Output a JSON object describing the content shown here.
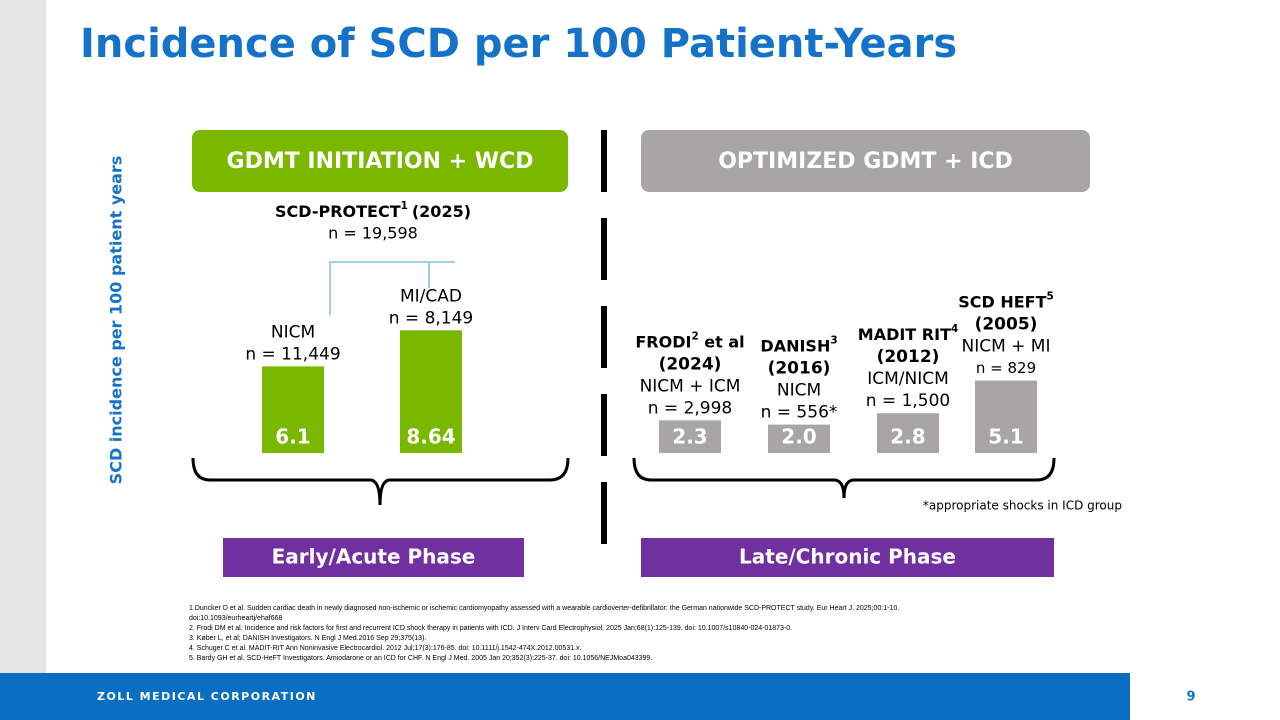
{
  "chart_data": {
    "type": "bar",
    "title": "Incidence of SCD per 100 Patient-Years",
    "y_label": "SCD incidence per 100 patient years",
    "groups": [
      {
        "title": "GDMT INITIATION + WCD",
        "phase": "Early/Acute Phase",
        "header_color": "#7ab800",
        "study": "SCD-PROTECT",
        "study_sup": "1",
        "study_year": "(2025)",
        "study_n": "n = 19,598"
      },
      {
        "title": "OPTIMIZED GDMT + ICD",
        "phase": "Late/Chronic Phase",
        "header_color": "#a7a5a5"
      }
    ],
    "bars": [
      {
        "group": 0,
        "lines": [
          "NICM",
          "n = 11,449"
        ],
        "value": 6.1,
        "value_label": "6.1",
        "color": "#7ab800"
      },
      {
        "group": 0,
        "lines": [
          "MI/CAD",
          "n = 8,149"
        ],
        "value": 8.64,
        "value_label": "8.64",
        "color": "#7ab800"
      },
      {
        "group": 1,
        "study": "FRODI",
        "study_sup": "2",
        "study_suffix": " et al",
        "study_year": "(2024)",
        "lines": [
          "NICM + ICM",
          "n = 2,998"
        ],
        "value": 2.3,
        "value_label": "2.3",
        "color": "#a7a5a5"
      },
      {
        "group": 1,
        "study": "DANISH",
        "study_sup": "3",
        "study_year": "(2016)",
        "lines": [
          "NICM",
          "n = 556*"
        ],
        "value": 2.0,
        "value_label": "2.0",
        "color": "#a7a5a5"
      },
      {
        "group": 1,
        "study": "MADIT RIT",
        "study_sup": "4",
        "study_year": "(2012)",
        "lines": [
          "ICM/NICM",
          "n = 1,500"
        ],
        "value": 2.8,
        "value_label": "2.8",
        "color": "#a7a5a5"
      },
      {
        "group": 1,
        "study": "SCD HEFT",
        "study_sup": "5",
        "study_year": "(2005)",
        "lines": [
          "NICM + MI",
          "n = 829"
        ],
        "value": 5.1,
        "value_label": "5.1",
        "color": "#a7a5a5"
      }
    ],
    "footnote": "*appropriate shocks in ICD group",
    "references": [
      "1.Duncker D et al. Sudden cardiac death in newly diagnosed non-ischemic or ischemic cardiomyopathy assessed with a wearable cardioverter-defibrillator: the German nationwide SCD-PROTECT study. Eur Heart J. 2025;00:1-10.",
      "doi:10.1093/eurheartj/ehaf668",
      "2. Frodi DM et al. Incidence and risk factors for first and recurrent ICD shock therapy in patients with ICD. J Interv Card Electrophysiol. 2025 Jan;68(1):125-139. doi: 10.1007/s10840-024-01873-0.",
      "3. Køber L, et al; DANISH Investigators. N Engl J Med.2016 Sep 29;375(13).",
      "4. Schuger C et al. MADIT-RIT Ann Noninvasive Electrocardiol. 2012 Jul;17(3):176-85. doi: 10.1111/j.1542-474X.2012.00531.x.",
      "5. Bardy GH et al. SCD-HeFT Investigators. Amiodarone or an ICD for CHF. N Engl J Med. 2005 Jan 20;352(3):225-37. doi: 10.1056/NEJMoa043399."
    ],
    "footer": "ZOLL MEDICAL CORPORATION",
    "page_number": "9"
  }
}
